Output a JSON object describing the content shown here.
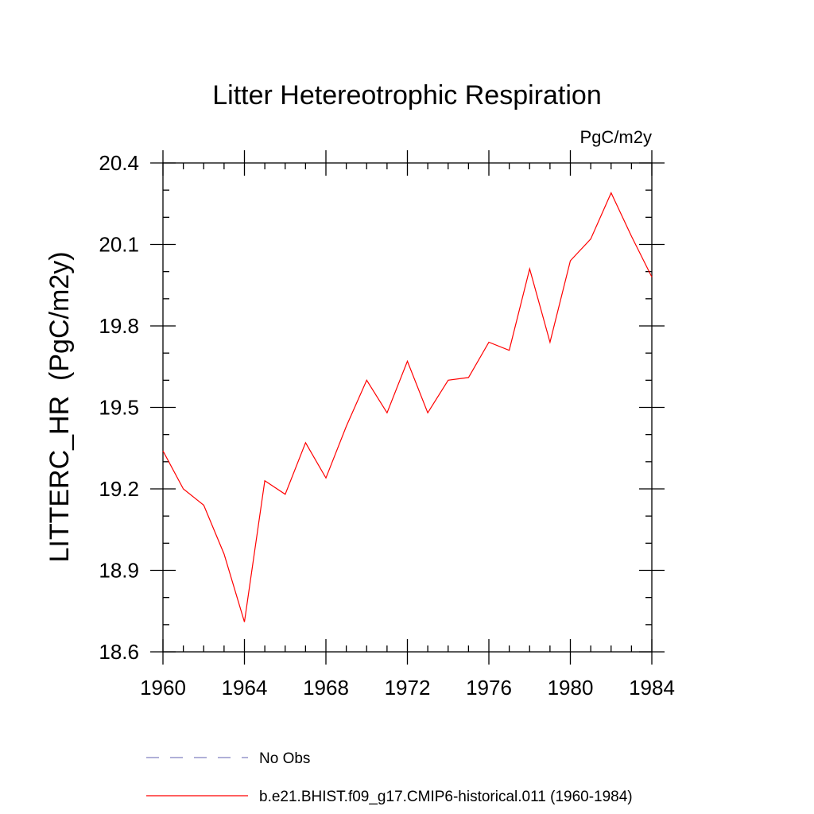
{
  "chart_data": {
    "type": "line",
    "title": "Litter Hetereotrophic Respiration",
    "units_label": "PgC/m2y",
    "xlabel": "",
    "ylabel": "LITTERC_HR  (PgC/m2y)",
    "xlim": [
      1960,
      1984
    ],
    "ylim": [
      18.6,
      20.4
    ],
    "x_ticks": [
      1960,
      1964,
      1968,
      1972,
      1976,
      1980,
      1984
    ],
    "x_tick_labels": [
      "1960",
      "1964",
      "1968",
      "1972",
      "1976",
      "1980",
      "1984"
    ],
    "y_ticks": [
      18.6,
      18.9,
      19.2,
      19.5,
      19.8,
      20.1,
      20.4
    ],
    "y_tick_labels": [
      "18.6",
      "18.9",
      "19.2",
      "19.5",
      "19.8",
      "20.1",
      "20.4"
    ],
    "x_minor_step": 1,
    "y_minor_step": 0.1,
    "grid": false,
    "legend_position": "bottom",
    "series": [
      {
        "name": "No Obs",
        "color": "#8080c0",
        "dash": "dashed",
        "x": [],
        "y": []
      },
      {
        "name": "b.e21.BHIST.f09_g17.CMIP6-historical.011 (1960-1984)",
        "color": "#ff0000",
        "dash": "solid",
        "x": [
          1960,
          1961,
          1962,
          1963,
          1964,
          1965,
          1966,
          1967,
          1968,
          1969,
          1970,
          1971,
          1972,
          1973,
          1974,
          1975,
          1976,
          1977,
          1978,
          1979,
          1980,
          1981,
          1982,
          1983,
          1984
        ],
        "y": [
          19.34,
          19.2,
          19.14,
          18.96,
          18.71,
          19.23,
          19.18,
          19.37,
          19.24,
          19.43,
          19.6,
          19.48,
          19.67,
          19.48,
          19.6,
          19.61,
          19.74,
          19.71,
          20.01,
          19.74,
          20.04,
          20.12,
          20.29,
          20.13,
          19.98
        ]
      }
    ]
  }
}
